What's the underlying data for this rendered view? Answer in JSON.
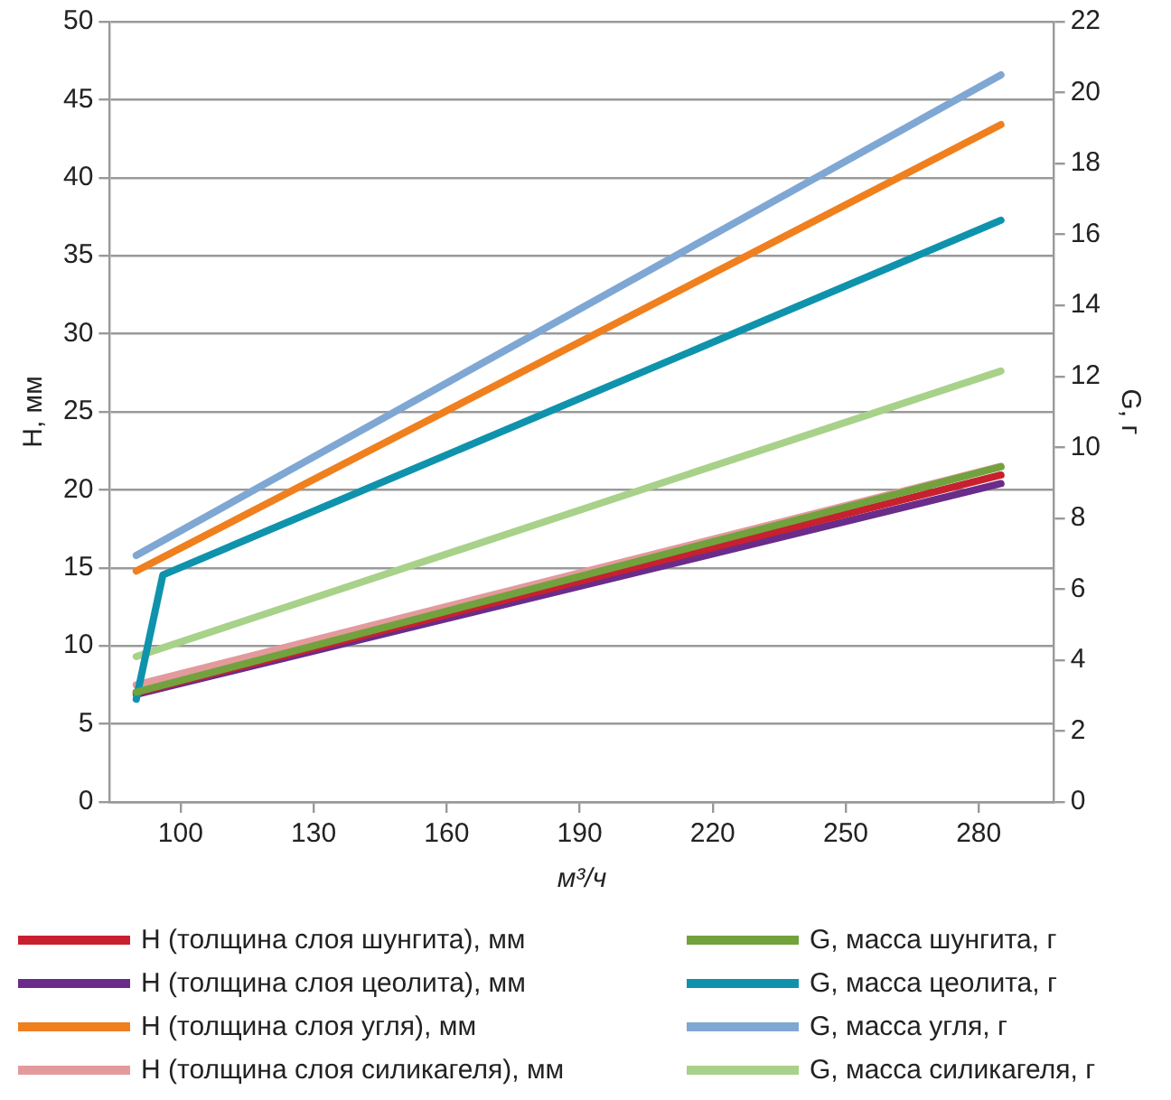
{
  "chart_data": {
    "type": "line",
    "xlabel": "м³/ч",
    "ylabel": "H, мм",
    "y2label": "G, г",
    "x": [
      90,
      285
    ],
    "xlim": [
      84,
      297
    ],
    "xticks": [
      100,
      130,
      160,
      190,
      220,
      250,
      280
    ],
    "ylim": [
      0,
      50
    ],
    "yticks": [
      0,
      5,
      10,
      15,
      20,
      25,
      30,
      35,
      40,
      45,
      50
    ],
    "y2lim": [
      0,
      22
    ],
    "y2ticks": [
      0,
      2,
      4,
      6,
      8,
      10,
      12,
      14,
      16,
      18,
      20,
      22
    ],
    "grid": "y",
    "legend": "bottom",
    "marker": "none",
    "line_style": "solid",
    "series": [
      {
        "name": "H (толщина слоя шунгита), мм",
        "color": "#c8202f",
        "values": [
          7.0,
          20.95
        ]
      },
      {
        "name": "H (толщина слоя цеолита), мм",
        "color": "#6a2c8a",
        "values": [
          6.9,
          20.4
        ]
      },
      {
        "name": "H (толщина слоя угля), мм",
        "color": "#f07f1e",
        "values": [
          14.8,
          43.4
        ]
      },
      {
        "name": "H (толщина слоя силикагеля), мм",
        "color": "#e39a9c",
        "values": [
          7.5,
          21.5
        ]
      },
      {
        "name": "G, масса шунгита, г",
        "color": "#72a23e",
        "axis": "y2",
        "values": [
          3.1,
          9.45
        ]
      },
      {
        "name": "G, масса цеолита, г",
        "color": "#0f93ac",
        "axis": "y2",
        "x": [
          90,
          96,
          285
        ],
        "values": [
          2.9,
          6.4,
          16.4
        ]
      },
      {
        "name": "G, масса угля, г",
        "color": "#7fa7d3",
        "axis": "y2",
        "values": [
          6.95,
          20.5
        ]
      },
      {
        "name": "G, масса силикагеля, г",
        "color": "#a8d18a",
        "axis": "y2",
        "values": [
          4.1,
          12.15
        ]
      }
    ]
  }
}
